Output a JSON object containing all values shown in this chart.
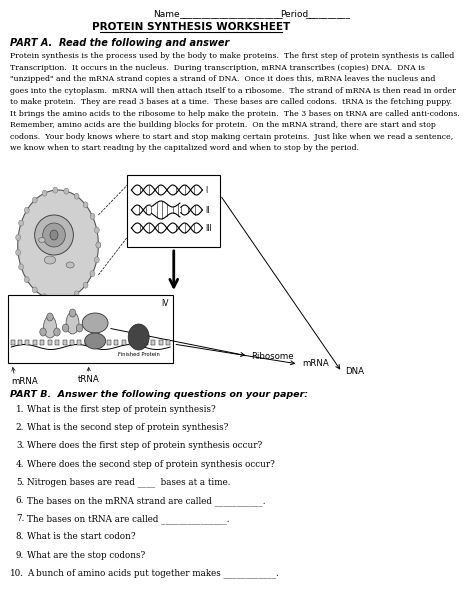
{
  "bg_color": "#ffffff",
  "title_main": "PROTEIN SYNTHESIS WORKSHEET",
  "part_a_header": "PART A.  Read the following and answer",
  "part_a_lines": [
    "Protein synthesis is the process used by the body to make proteins.  The first step of protein synthesis is called",
    "Transcription.  It occurs in the nucleus.  During transcription, mRNA transcribes (copies) DNA.  DNA is",
    "\"unzipped\" and the mRNA strand copies a strand of DNA.  Once it does this, mRNA leaves the nucleus and",
    "goes into the cytoplasm.  mRNA will then attach itself to a ribosome.  The strand of mRNA is then read in order",
    "to make protein.  They are read 3 bases at a time.  These bases are called codons.  tRNA is the fetching puppy.",
    "It brings the amino acids to the ribosome to help make the protein.  The 3 bases on tRNA are called anti-codons.",
    "Remember, amino acids are the building blocks for protein.  On the mRNA strand, there are start and stop",
    "codons.  Your body knows where to start and stop making certain proteins.  Just like when we read a sentence,",
    "we know when to start reading by the capitalized word and when to stop by the period."
  ],
  "part_b_header": "PART B.  Answer the following questions on your paper:",
  "questions": [
    "What is the first step of protein synthesis?",
    "What is the second step of protein synthesis?",
    "Where does the first step of protein synthesis occur?",
    "Where does the second step of protein synthesis occur?",
    "Nitrogen bases are read ____  bases at a time.",
    "The bases on the mRNA strand are called ___________.",
    "The bases on tRNA are called _______________.",
    "What is the start codon?",
    "What are the stop codons?",
    "A bunch of amino acids put together makes ____________."
  ]
}
